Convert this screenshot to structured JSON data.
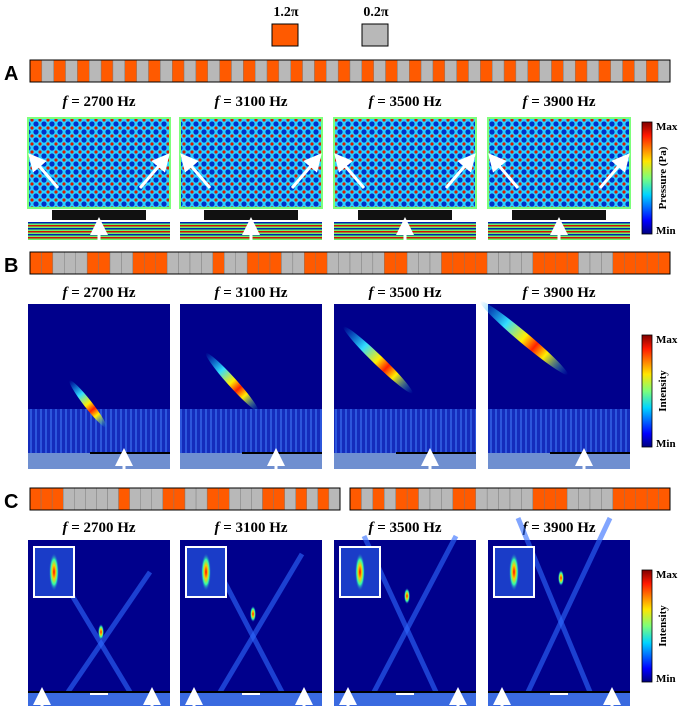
{
  "legend": {
    "items": [
      {
        "label": "1.2π",
        "color": "#ff5a00"
      },
      {
        "label": "0.2π",
        "color": "#b8b8b8"
      }
    ]
  },
  "rows": [
    {
      "label": "A",
      "pattern": "ogogogogogogogogogogogogogogogogogogogogogogogogogogog",
      "panels": [
        {
          "f": "2700 Hz",
          "type": "standing"
        },
        {
          "f": "3100 Hz",
          "type": "standing"
        },
        {
          "f": "3500 Hz",
          "type": "standing"
        },
        {
          "f": "3900 Hz",
          "type": "standing"
        }
      ],
      "colorbar": {
        "title": "Pressure (Pa)",
        "max": "Max",
        "min": "Min"
      }
    },
    {
      "label": "B",
      "pattern": "oogggooggoooggggoggoooggoogggggoogggooooggggoooogggooooo",
      "panels": [
        {
          "f": "2700 Hz",
          "type": "beam"
        },
        {
          "f": "3100 Hz",
          "type": "beam"
        },
        {
          "f": "3500 Hz",
          "type": "beam"
        },
        {
          "f": "3900 Hz",
          "type": "beam"
        }
      ],
      "colorbar": {
        "title": "Intensity",
        "max": "Max",
        "min": "Min"
      }
    },
    {
      "label": "C",
      "pattern": "ooogggggogggooggoogggoogogogogogoogggoogggggoooggggooooo",
      "panels": [
        {
          "f": "2700 Hz",
          "type": "focus"
        },
        {
          "f": "3100 Hz",
          "type": "focus"
        },
        {
          "f": "3500 Hz",
          "type": "focus"
        },
        {
          "f": "3900 Hz",
          "type": "focus"
        }
      ],
      "colorbar": {
        "title": "Intensity",
        "max": "Max",
        "min": "Min"
      }
    }
  ],
  "freq_prefix": "f",
  "colors": {
    "orange": "#ff5a00",
    "gray": "#b8b8b8",
    "field_dark": "#00008c",
    "field_blue": "#1a3cc8"
  }
}
